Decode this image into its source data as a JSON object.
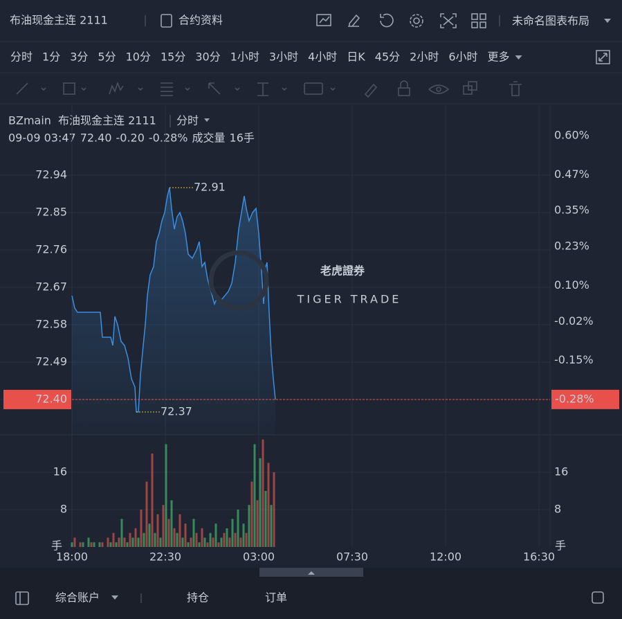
{
  "header": {
    "title": "布油现金主连 2111",
    "contract_info": "合约资料",
    "layout_name": "未命名图表布局"
  },
  "timeframes": {
    "items": [
      "分时",
      "1分",
      "3分",
      "5分",
      "10分",
      "15分",
      "30分",
      "1小时",
      "3小时",
      "4小时",
      "日K",
      "45分",
      "2小时",
      "6小时"
    ],
    "more": "更多"
  },
  "legend": {
    "symbol": "BZmain",
    "name": "布油现金主连 2111",
    "period": "分时"
  },
  "quote": {
    "time": "09-09 03:47",
    "price": "72.40",
    "change": "-0.20",
    "change_pct": "-0.28%",
    "volume_label": "成交量",
    "volume": "16手"
  },
  "watermark": {
    "cn": "老虎證券",
    "en": "TIGER TRADE"
  },
  "chart": {
    "type": "line",
    "color": "#3b8fe0",
    "up_color": "#3fb86b",
    "down_color": "#e8504c",
    "x": [
      0,
      8,
      16,
      82,
      88,
      112,
      118,
      124,
      132,
      142,
      152,
      162,
      172,
      182,
      186,
      192,
      198,
      206,
      212,
      218,
      226,
      236,
      244,
      252,
      260,
      268,
      276,
      282,
      288,
      296,
      304,
      312,
      320,
      328,
      336,
      348,
      360,
      368,
      376,
      384,
      392,
      402,
      412,
      422,
      432,
      442,
      452,
      462,
      472,
      482,
      492,
      498,
      504,
      512,
      522,
      532,
      540,
      548,
      554,
      560,
      564,
      570,
      576,
      582,
      588
    ],
    "values": [
      72.65,
      72.62,
      72.61,
      72.61,
      72.55,
      72.55,
      72.53,
      72.6,
      72.58,
      72.54,
      72.53,
      72.5,
      72.45,
      72.43,
      72.37,
      72.37,
      72.46,
      72.53,
      72.58,
      72.65,
      72.7,
      72.72,
      72.78,
      72.8,
      72.83,
      72.85,
      72.89,
      72.91,
      72.86,
      72.81,
      72.84,
      72.85,
      72.83,
      72.8,
      72.75,
      72.74,
      72.76,
      72.78,
      72.72,
      72.73,
      72.69,
      72.66,
      72.63,
      72.65,
      72.64,
      72.65,
      72.66,
      72.68,
      72.73,
      72.81,
      72.86,
      72.89,
      72.86,
      72.83,
      72.85,
      72.86,
      72.8,
      72.71,
      72.63,
      72.72,
      72.73,
      72.61,
      72.51,
      72.45,
      72.4
    ],
    "xlim": [
      0,
      1382
    ],
    "xticks": [
      {
        "value": 0,
        "label": "18:00"
      },
      {
        "value": 270,
        "label": "22:30"
      },
      {
        "value": 540,
        "label": "03:00"
      },
      {
        "value": 810,
        "label": "07:30"
      },
      {
        "value": 1080,
        "label": "12:00"
      },
      {
        "value": 1350,
        "label": "16:30"
      }
    ],
    "ylim": [
      72.315,
      73.035
    ],
    "yticks": [
      72.94,
      72.85,
      72.76,
      72.67,
      72.58,
      72.49,
      {
        "value": 72.4,
        "label": "72.40"
      }
    ],
    "y2lim": [
      -0.398,
      0.6
    ],
    "y2ticks": [
      {
        "value": 0.6,
        "label": "0.60%"
      },
      {
        "value": 0.47,
        "label": "0.47%"
      },
      {
        "value": 0.35,
        "label": "0.35%"
      },
      {
        "value": 0.23,
        "label": "0.23%"
      },
      {
        "value": 0.1,
        "label": "0.10%"
      },
      {
        "value": -0.02,
        "label": "-0.02%"
      },
      {
        "value": -0.15,
        "label": "-0.15%"
      }
    ],
    "high_label": 72.91,
    "low_label": 72.37,
    "last_price": {
      "value": 72.4,
      "label": "72.40"
    },
    "last_pct": {
      "value": -0.28,
      "label": "-0.28%"
    }
  },
  "volume": {
    "type": "bar",
    "colors": [
      "#3fae6a",
      "#c9504c"
    ],
    "x": [
      0,
      8,
      16,
      24,
      32,
      40,
      48,
      56,
      64,
      72,
      80,
      88,
      96,
      104,
      112,
      120,
      128,
      136,
      144,
      152,
      160,
      168,
      176,
      184,
      192,
      200,
      208,
      216,
      224,
      232,
      240,
      248,
      256,
      264,
      272,
      280,
      288,
      296,
      304,
      312,
      320,
      328,
      336,
      344,
      352,
      360,
      368,
      376,
      384,
      392,
      400,
      408,
      416,
      424,
      432,
      440,
      448,
      456,
      464,
      472,
      480,
      488,
      496,
      504,
      512,
      520,
      528,
      536,
      544,
      552,
      560,
      568,
      576,
      584
    ],
    "values": [
      1,
      2,
      0,
      1,
      1,
      0,
      2,
      1,
      1,
      0,
      1,
      1,
      0,
      2,
      1,
      3,
      1,
      2,
      6,
      2,
      1,
      3,
      2,
      4,
      2,
      8,
      3,
      14,
      5,
      20,
      3,
      7,
      2,
      9,
      22,
      6,
      10,
      4,
      3,
      7,
      2,
      5,
      1,
      2,
      6,
      3,
      1,
      4,
      2,
      1,
      3,
      2,
      5,
      1,
      2,
      3,
      4,
      2,
      6,
      3,
      8,
      2,
      5,
      3,
      9,
      14,
      22,
      10,
      19,
      23,
      12,
      18,
      9,
      16
    ],
    "ylim": [
      0,
      24
    ],
    "yticks": [
      8,
      16
    ],
    "unit": "手"
  },
  "footer": {
    "account": "综合账户",
    "positions": "持仓",
    "orders": "订单"
  }
}
